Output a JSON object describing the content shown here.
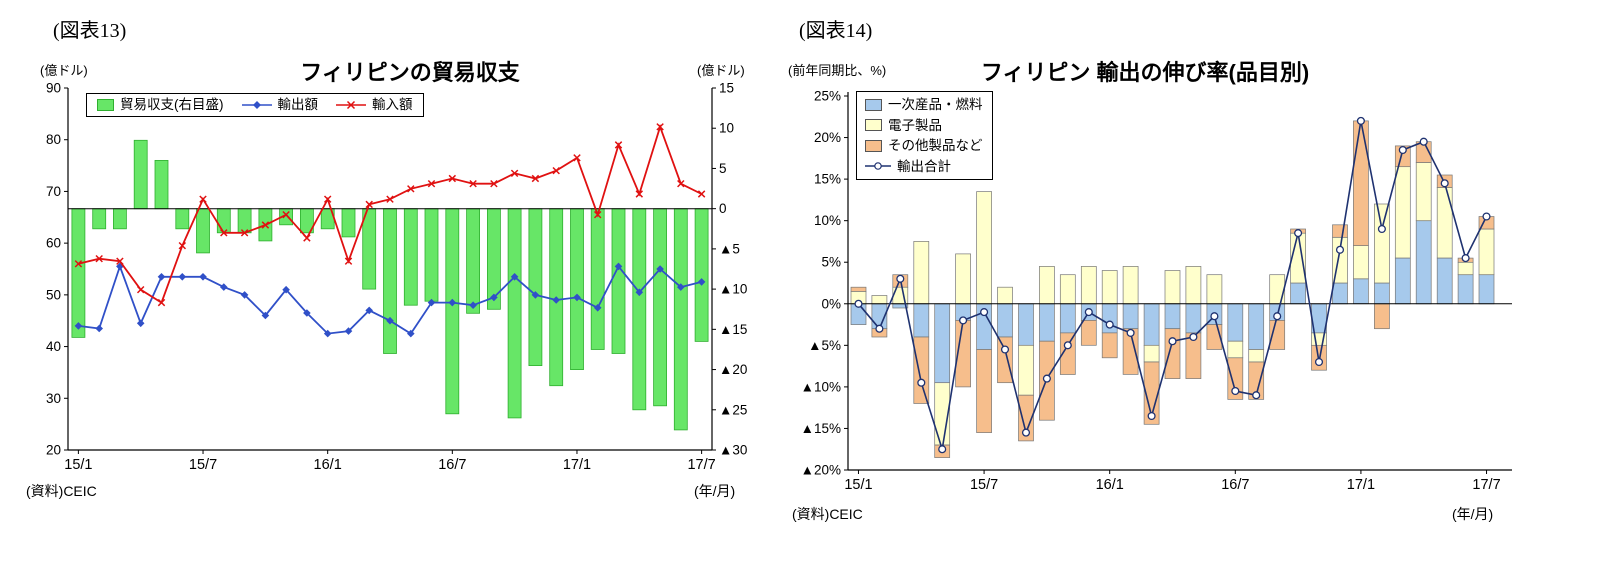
{
  "figure13": {
    "tag": "(図表13)",
    "title": "フィリピンの貿易収支",
    "left_axis_unit": "(億ドル)",
    "right_axis_unit": "(億ドル)",
    "source": "(資料)CEIC",
    "x_axis_unit": "(年/月)",
    "legend": {
      "balance": "貿易収支(右目盛)",
      "exports": "輸出額",
      "imports": "輸入額"
    }
  },
  "figure14": {
    "tag": "(図表14)",
    "title": "フィリピン  輸出の伸び率(品目別)",
    "y_axis_unit": "(前年同期比、%)",
    "source": "(資料)CEIC",
    "x_axis_unit": "(年/月)",
    "legend": {
      "primary_fuel": "一次産品・燃料",
      "electronics": "電子製品",
      "other_products": "その他製品など",
      "total_exports": "輸出合計"
    }
  },
  "chart_data": [
    {
      "id": "figure13",
      "type": "bar+line",
      "title": "フィリピンの貿易収支",
      "months": [
        "15/1",
        "15/2",
        "15/3",
        "15/4",
        "15/5",
        "15/6",
        "15/7",
        "15/8",
        "15/9",
        "15/10",
        "15/11",
        "15/12",
        "16/1",
        "16/2",
        "16/3",
        "16/4",
        "16/5",
        "16/6",
        "16/7",
        "16/8",
        "16/9",
        "16/10",
        "16/11",
        "16/12",
        "17/1",
        "17/2",
        "17/3",
        "17/4",
        "17/5",
        "17/6",
        "17/7"
      ],
      "x_labels": [
        {
          "index": 0,
          "label": "15/1"
        },
        {
          "index": 6,
          "label": "15/7"
        },
        {
          "index": 12,
          "label": "16/1"
        },
        {
          "index": 18,
          "label": "16/7"
        },
        {
          "index": 24,
          "label": "17/1"
        },
        {
          "index": 30,
          "label": "17/7"
        }
      ],
      "left_axis": {
        "unit": "(億ドル)",
        "min": 20,
        "max": 90,
        "ticks": [
          {
            "v": 90,
            "t": "90"
          },
          {
            "v": 80,
            "t": "80"
          },
          {
            "v": 70,
            "t": "70"
          },
          {
            "v": 60,
            "t": "60"
          },
          {
            "v": 50,
            "t": "50"
          },
          {
            "v": 40,
            "t": "40"
          },
          {
            "v": 30,
            "t": "30"
          },
          {
            "v": 20,
            "t": "20"
          }
        ]
      },
      "right_axis": {
        "unit": "(億ドル)",
        "min": -30,
        "max": 15,
        "ticks": [
          {
            "v": 15,
            "t": "15"
          },
          {
            "v": 10,
            "t": "10"
          },
          {
            "v": 5,
            "t": "5"
          },
          {
            "v": 0,
            "t": "0"
          },
          {
            "v": -5,
            "t": "▲5"
          },
          {
            "v": -10,
            "t": "▲10"
          },
          {
            "v": -15,
            "t": "▲15"
          },
          {
            "v": -20,
            "t": "▲20"
          },
          {
            "v": -25,
            "t": "▲25"
          },
          {
            "v": -30,
            "t": "▲30"
          }
        ]
      },
      "series": [
        {
          "name": "貿易収支(右目盛)",
          "type": "bar",
          "axis": "right",
          "color": "#67E667",
          "border": "#2FAF2F",
          "values": [
            -16,
            -2.5,
            -2.5,
            8.5,
            6,
            -2.5,
            -5.5,
            -3,
            -3,
            -4,
            -2,
            -3,
            -2.5,
            -3.5,
            -10,
            -18,
            -12,
            -11.5,
            -25.5,
            -13,
            -12.5,
            -26,
            -19.5,
            -22,
            -20,
            -17.5,
            -18,
            -25,
            -24.5,
            -27.5,
            -16.5
          ]
        },
        {
          "name": "輸出額",
          "type": "line",
          "axis": "left",
          "marker": "diamond",
          "color": "#3050C8",
          "values": [
            44,
            43.5,
            55.5,
            44.5,
            53.5,
            53.5,
            53.5,
            51.5,
            50,
            46,
            51,
            46.5,
            42.5,
            43,
            47,
            45,
            42.5,
            48.5,
            48.5,
            48,
            49.5,
            53.5,
            50,
            49,
            49.5,
            47.5,
            55.5,
            50.5,
            55,
            51.5,
            52.5
          ]
        },
        {
          "name": "輸入額",
          "type": "line",
          "axis": "left",
          "marker": "x",
          "color": "#E01111",
          "values": [
            56,
            57,
            56.5,
            51,
            48.5,
            59.5,
            68.5,
            62,
            62,
            63.5,
            65.5,
            61,
            68.5,
            56.5,
            67.5,
            68.5,
            70.5,
            71.5,
            72.5,
            71.5,
            71.5,
            73.5,
            72.5,
            74,
            76.5,
            65.5,
            79,
            69.5,
            82.5,
            71.5,
            69.5
          ]
        }
      ]
    },
    {
      "id": "figure14",
      "type": "stacked-bar+line",
      "title": "フィリピン  輸出の伸び率(品目別)",
      "months": [
        "15/1",
        "15/2",
        "15/3",
        "15/4",
        "15/5",
        "15/6",
        "15/7",
        "15/8",
        "15/9",
        "15/10",
        "15/11",
        "15/12",
        "16/1",
        "16/2",
        "16/3",
        "16/4",
        "16/5",
        "16/6",
        "16/7",
        "16/8",
        "16/9",
        "16/10",
        "16/11",
        "16/12",
        "17/1",
        "17/2",
        "17/3",
        "17/4",
        "17/5",
        "17/6",
        "17/7"
      ],
      "x_labels": [
        {
          "index": 0,
          "label": "15/1"
        },
        {
          "index": 6,
          "label": "15/7"
        },
        {
          "index": 12,
          "label": "16/1"
        },
        {
          "index": 18,
          "label": "16/7"
        },
        {
          "index": 24,
          "label": "17/1"
        },
        {
          "index": 30,
          "label": "17/7"
        }
      ],
      "y_axis": {
        "unit": "(前年同期比、%)",
        "min": -20,
        "max": 25,
        "ticks": [
          {
            "v": 25,
            "t": "25%"
          },
          {
            "v": 20,
            "t": "20%"
          },
          {
            "v": 15,
            "t": "15%"
          },
          {
            "v": 10,
            "t": "10%"
          },
          {
            "v": 5,
            "t": "5%"
          },
          {
            "v": 0,
            "t": "0%"
          },
          {
            "v": -5,
            "t": "▲5%"
          },
          {
            "v": -10,
            "t": "▲10%"
          },
          {
            "v": -15,
            "t": "▲15%"
          },
          {
            "v": -20,
            "t": "▲20%"
          }
        ]
      },
      "series": [
        {
          "name": "一次産品・燃料",
          "type": "bar",
          "color": "#A6C9EC",
          "values": [
            -2.5,
            -3,
            -0.5,
            -4,
            -9.5,
            -2,
            -5.5,
            -4,
            -5,
            -4.5,
            -3.5,
            -2,
            -3.5,
            -3,
            -5,
            -3,
            -3.5,
            -2.5,
            -4.5,
            -5.5,
            -2,
            2.5,
            -3.5,
            2.5,
            3,
            2.5,
            5.5,
            10,
            5.5,
            3.5,
            3.5
          ]
        },
        {
          "name": "電子製品",
          "type": "bar",
          "color": "#FFFFCC",
          "values": [
            1.5,
            1,
            2,
            7.5,
            -7.5,
            6,
            13.5,
            2,
            -6,
            4.5,
            3.5,
            4.5,
            4,
            4.5,
            -2,
            4,
            4.5,
            3.5,
            -2,
            -1.5,
            3.5,
            6,
            -1.5,
            5.5,
            4,
            9.5,
            11,
            7,
            8.5,
            1.5,
            5.5
          ]
        },
        {
          "name": "その他製品など",
          "type": "bar",
          "color": "#F6BE8C",
          "values": [
            0.5,
            -1,
            1.5,
            -8,
            -1.5,
            -8,
            -10,
            -5.5,
            -5.5,
            -9.5,
            -5,
            -3,
            -3,
            -5.5,
            -7.5,
            -6,
            -5.5,
            -3,
            -5,
            -4.5,
            -3.5,
            0.5,
            -3,
            1.5,
            15,
            -3,
            2.5,
            2.5,
            1.5,
            0.5,
            1.5
          ]
        },
        {
          "name": "輸出合計",
          "type": "line",
          "marker": "circle",
          "color": "#1F3270",
          "values": [
            0,
            -3,
            3,
            -9.5,
            -17.5,
            -2,
            -1,
            -5.5,
            -15.5,
            -9,
            -5,
            -1,
            -2.5,
            -3.5,
            -13.5,
            -4.5,
            -4,
            -1.5,
            -10.5,
            -11,
            -1.5,
            8.5,
            -7,
            6.5,
            22,
            9,
            18.5,
            19.5,
            14.5,
            5.5,
            10.5
          ]
        }
      ]
    }
  ]
}
